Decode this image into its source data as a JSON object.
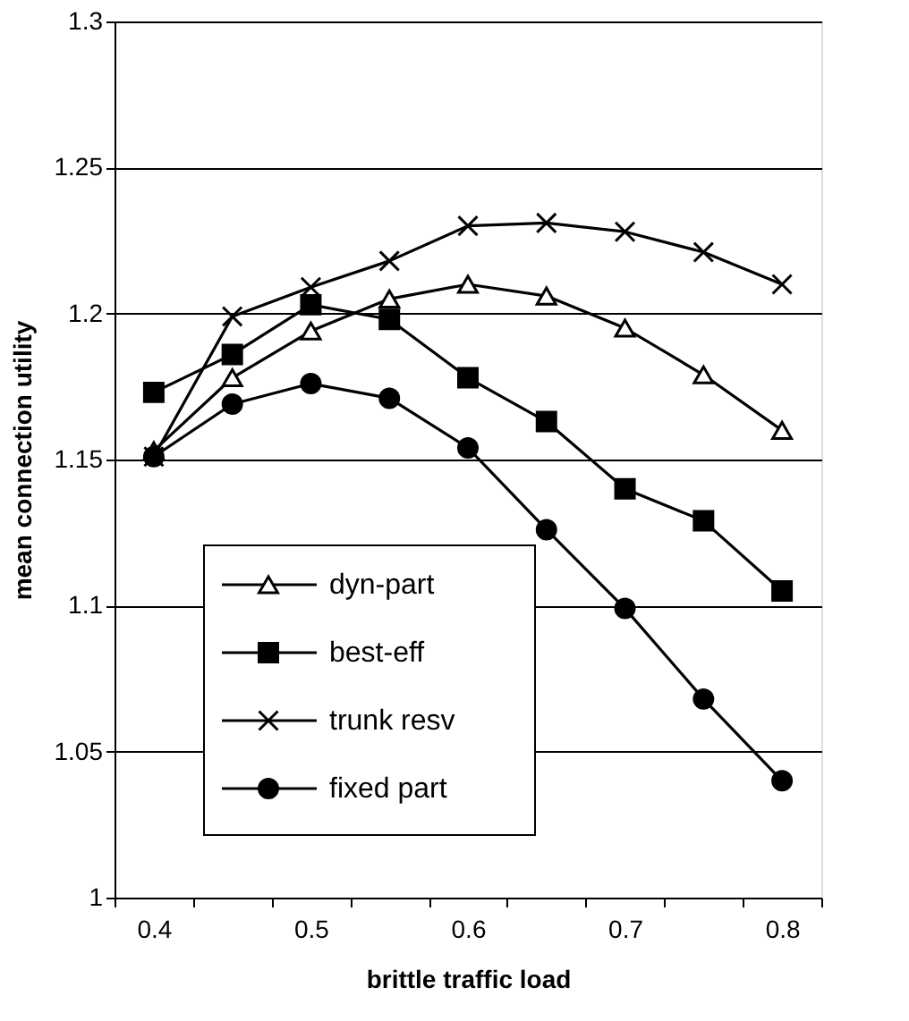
{
  "chart_data": {
    "type": "line",
    "xlabel": "brittle traffic load",
    "ylabel": "mean connection utility",
    "categories": [
      "0.4",
      null,
      "0.5",
      null,
      "0.6",
      null,
      "0.7",
      null,
      "0.8"
    ],
    "ylim": [
      1,
      1.3
    ],
    "yticks": [
      {
        "value": 1,
        "label": "1"
      },
      1.05,
      {
        "value": 1.1,
        "label": "1.1"
      },
      1.15,
      {
        "value": 1.2,
        "label": "1.2"
      },
      1.25,
      {
        "value": 1.3,
        "label": "1.3"
      }
    ],
    "grid": "y",
    "legend": "bottom left",
    "line_style": "solid",
    "series": [
      {
        "name": "dyn-part",
        "color": "#000000",
        "marker": "triangle",
        "values": [
          1.153,
          1.178,
          1.194,
          1.205,
          1.21,
          1.206,
          1.195,
          1.179,
          1.16
        ]
      },
      {
        "name": "best-eff",
        "color": "#000000",
        "marker": "square",
        "values": [
          1.173,
          1.186,
          1.203,
          1.198,
          1.178,
          1.163,
          1.14,
          1.129,
          1.105
        ]
      },
      {
        "name": "trunk resv",
        "color": "#000000",
        "marker": "cross",
        "values": [
          1.151,
          1.199,
          1.209,
          1.218,
          1.23,
          1.231,
          1.228,
          1.221,
          1.21
        ]
      },
      {
        "name": "fixed part",
        "color": "#000000",
        "marker": "circle",
        "values": [
          1.151,
          1.169,
          1.176,
          1.171,
          1.154,
          1.126,
          1.099,
          1.068,
          1.04
        ]
      }
    ]
  }
}
